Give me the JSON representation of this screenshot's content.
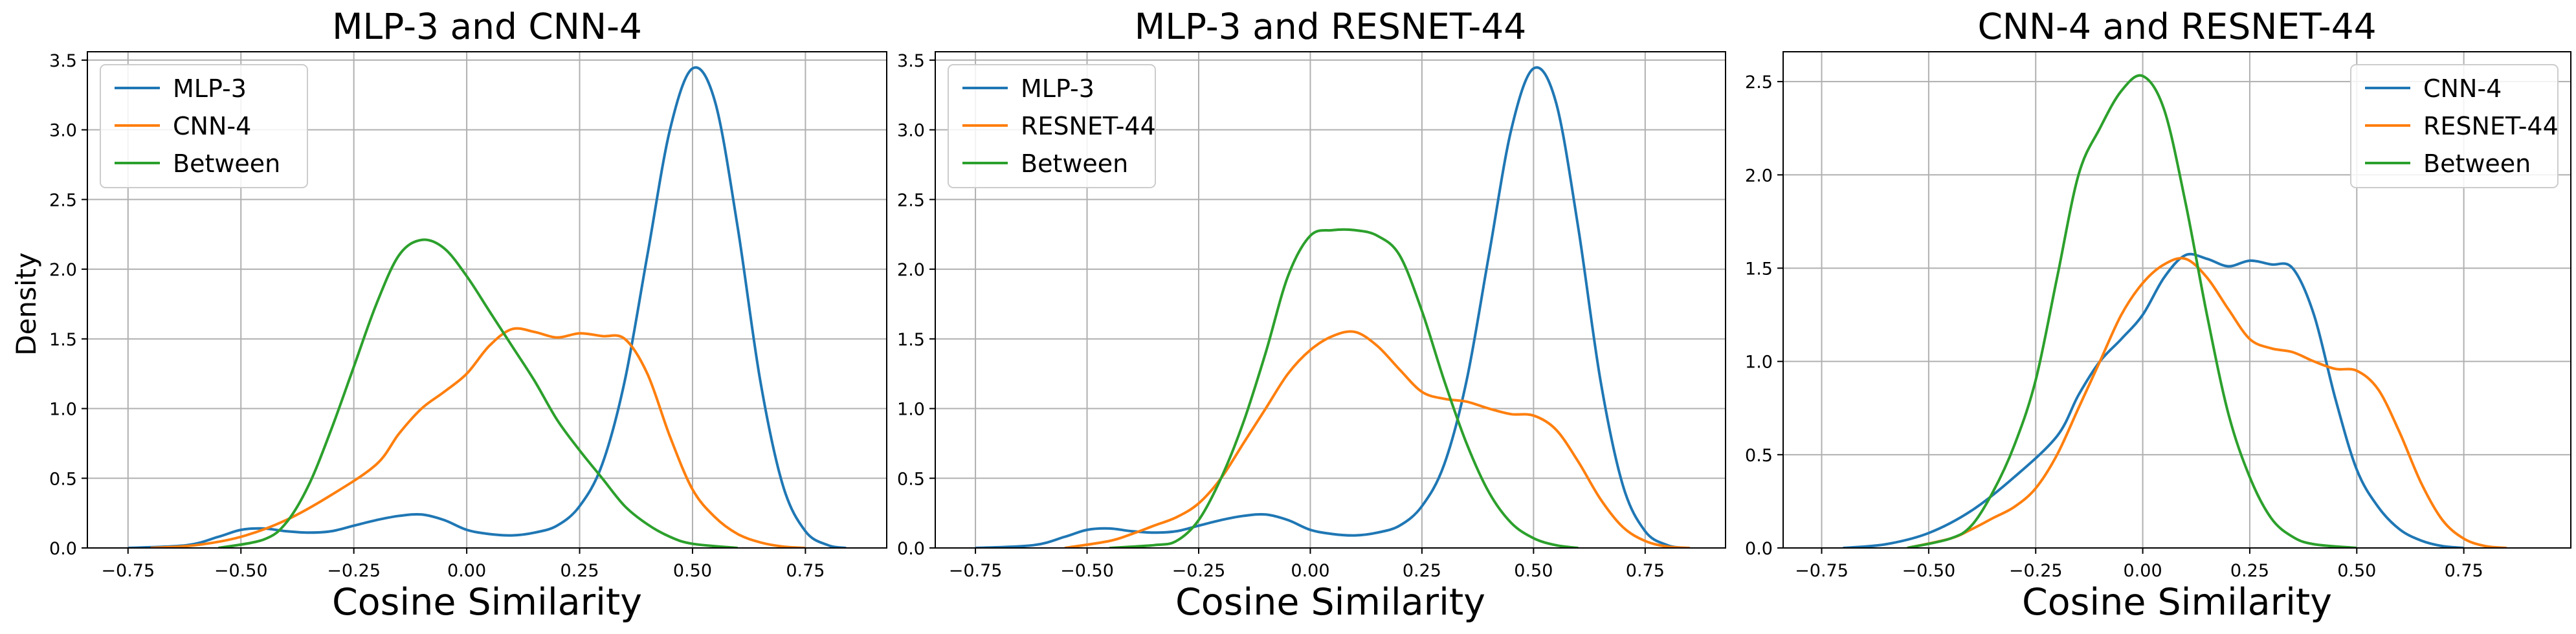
{
  "figure": {
    "ylabel": "Density",
    "xlabel": "Cosine Similarity"
  },
  "chart_data": [
    {
      "type": "line",
      "title": "MLP-3 and CNN-4",
      "xlabel": "Cosine Similarity",
      "ylabel": "Density",
      "xlim": [
        -0.84,
        0.93
      ],
      "ylim": [
        0,
        3.56
      ],
      "xticks": [
        -0.75,
        -0.5,
        -0.25,
        0.0,
        0.25,
        0.5,
        0.75
      ],
      "xtick_labels": [
        "−0.75",
        "−0.50",
        "−0.25",
        "0.00",
        "0.25",
        "0.50",
        "0.75"
      ],
      "yticks": [
        0,
        0.5,
        1.0,
        1.5,
        2.0,
        2.5,
        3.0,
        3.5
      ],
      "ytick_labels": [
        "0.0",
        "0.5",
        "1.0",
        "1.5",
        "2.0",
        "2.5",
        "3.0",
        "3.5"
      ],
      "grid": true,
      "legend_position": "upper-left",
      "series": [
        {
          "name": "MLP-3",
          "color": "#1f77b4",
          "points": [
            [
              -0.75,
              0
            ],
            [
              -0.62,
              0.02
            ],
            [
              -0.55,
              0.08
            ],
            [
              -0.5,
              0.13
            ],
            [
              -0.45,
              0.14
            ],
            [
              -0.4,
              0.12
            ],
            [
              -0.35,
              0.11
            ],
            [
              -0.3,
              0.12
            ],
            [
              -0.25,
              0.16
            ],
            [
              -0.2,
              0.2
            ],
            [
              -0.15,
              0.23
            ],
            [
              -0.1,
              0.24
            ],
            [
              -0.05,
              0.2
            ],
            [
              0.0,
              0.13
            ],
            [
              0.05,
              0.1
            ],
            [
              0.1,
              0.09
            ],
            [
              0.15,
              0.11
            ],
            [
              0.2,
              0.16
            ],
            [
              0.25,
              0.3
            ],
            [
              0.3,
              0.6
            ],
            [
              0.35,
              1.2
            ],
            [
              0.4,
              2.1
            ],
            [
              0.45,
              3.0
            ],
            [
              0.5,
              3.44
            ],
            [
              0.55,
              3.2
            ],
            [
              0.6,
              2.3
            ],
            [
              0.65,
              1.2
            ],
            [
              0.7,
              0.45
            ],
            [
              0.75,
              0.12
            ],
            [
              0.8,
              0.02
            ],
            [
              0.84,
              0
            ]
          ]
        },
        {
          "name": "CNN-4",
          "color": "#ff7f0e",
          "points": [
            [
              -0.7,
              0
            ],
            [
              -0.6,
              0.02
            ],
            [
              -0.5,
              0.08
            ],
            [
              -0.4,
              0.2
            ],
            [
              -0.3,
              0.38
            ],
            [
              -0.2,
              0.6
            ],
            [
              -0.15,
              0.82
            ],
            [
              -0.1,
              1.0
            ],
            [
              -0.05,
              1.12
            ],
            [
              0.0,
              1.25
            ],
            [
              0.05,
              1.45
            ],
            [
              0.1,
              1.57
            ],
            [
              0.15,
              1.55
            ],
            [
              0.2,
              1.51
            ],
            [
              0.25,
              1.54
            ],
            [
              0.3,
              1.52
            ],
            [
              0.35,
              1.5
            ],
            [
              0.4,
              1.25
            ],
            [
              0.45,
              0.8
            ],
            [
              0.5,
              0.42
            ],
            [
              0.55,
              0.22
            ],
            [
              0.6,
              0.1
            ],
            [
              0.65,
              0.04
            ],
            [
              0.7,
              0.01
            ],
            [
              0.75,
              0
            ]
          ]
        },
        {
          "name": "Between",
          "color": "#2ca02c",
          "points": [
            [
              -0.55,
              0
            ],
            [
              -0.45,
              0.06
            ],
            [
              -0.4,
              0.18
            ],
            [
              -0.35,
              0.45
            ],
            [
              -0.3,
              0.85
            ],
            [
              -0.25,
              1.3
            ],
            [
              -0.2,
              1.75
            ],
            [
              -0.15,
              2.1
            ],
            [
              -0.1,
              2.21
            ],
            [
              -0.05,
              2.15
            ],
            [
              0.0,
              1.95
            ],
            [
              0.05,
              1.7
            ],
            [
              0.1,
              1.45
            ],
            [
              0.15,
              1.2
            ],
            [
              0.2,
              0.92
            ],
            [
              0.25,
              0.7
            ],
            [
              0.3,
              0.5
            ],
            [
              0.35,
              0.3
            ],
            [
              0.4,
              0.17
            ],
            [
              0.45,
              0.08
            ],
            [
              0.5,
              0.03
            ],
            [
              0.6,
              0
            ]
          ]
        }
      ]
    },
    {
      "type": "line",
      "title": "MLP-3 and RESNET-44",
      "xlabel": "Cosine Similarity",
      "ylabel": "",
      "xlim": [
        -0.84,
        0.93
      ],
      "ylim": [
        0,
        3.56
      ],
      "xticks": [
        -0.75,
        -0.5,
        -0.25,
        0.0,
        0.25,
        0.5,
        0.75
      ],
      "xtick_labels": [
        "−0.75",
        "−0.50",
        "−0.25",
        "0.00",
        "0.25",
        "0.50",
        "0.75"
      ],
      "yticks": [
        0,
        0.5,
        1.0,
        1.5,
        2.0,
        2.5,
        3.0,
        3.5
      ],
      "ytick_labels": [
        "0.0",
        "0.5",
        "1.0",
        "1.5",
        "2.0",
        "2.5",
        "3.0",
        "3.5"
      ],
      "grid": true,
      "legend_position": "upper-left",
      "series": [
        {
          "name": "MLP-3",
          "color": "#1f77b4",
          "points": [
            [
              -0.75,
              0
            ],
            [
              -0.62,
              0.02
            ],
            [
              -0.55,
              0.08
            ],
            [
              -0.5,
              0.13
            ],
            [
              -0.45,
              0.14
            ],
            [
              -0.4,
              0.12
            ],
            [
              -0.35,
              0.11
            ],
            [
              -0.3,
              0.12
            ],
            [
              -0.25,
              0.16
            ],
            [
              -0.2,
              0.2
            ],
            [
              -0.15,
              0.23
            ],
            [
              -0.1,
              0.24
            ],
            [
              -0.05,
              0.2
            ],
            [
              0.0,
              0.13
            ],
            [
              0.05,
              0.1
            ],
            [
              0.1,
              0.09
            ],
            [
              0.15,
              0.11
            ],
            [
              0.2,
              0.16
            ],
            [
              0.25,
              0.3
            ],
            [
              0.3,
              0.6
            ],
            [
              0.35,
              1.2
            ],
            [
              0.4,
              2.1
            ],
            [
              0.45,
              3.0
            ],
            [
              0.5,
              3.44
            ],
            [
              0.55,
              3.2
            ],
            [
              0.6,
              2.3
            ],
            [
              0.65,
              1.2
            ],
            [
              0.7,
              0.45
            ],
            [
              0.75,
              0.12
            ],
            [
              0.8,
              0.02
            ],
            [
              0.84,
              0
            ]
          ]
        },
        {
          "name": "RESNET-44",
          "color": "#ff7f0e",
          "points": [
            [
              -0.55,
              0
            ],
            [
              -0.45,
              0.05
            ],
            [
              -0.4,
              0.1
            ],
            [
              -0.35,
              0.16
            ],
            [
              -0.3,
              0.22
            ],
            [
              -0.25,
              0.32
            ],
            [
              -0.2,
              0.5
            ],
            [
              -0.15,
              0.75
            ],
            [
              -0.1,
              1.0
            ],
            [
              -0.05,
              1.25
            ],
            [
              0.0,
              1.42
            ],
            [
              0.05,
              1.52
            ],
            [
              0.1,
              1.55
            ],
            [
              0.15,
              1.45
            ],
            [
              0.2,
              1.28
            ],
            [
              0.25,
              1.12
            ],
            [
              0.3,
              1.07
            ],
            [
              0.35,
              1.05
            ],
            [
              0.4,
              1.0
            ],
            [
              0.45,
              0.96
            ],
            [
              0.5,
              0.95
            ],
            [
              0.55,
              0.85
            ],
            [
              0.6,
              0.62
            ],
            [
              0.65,
              0.35
            ],
            [
              0.7,
              0.15
            ],
            [
              0.75,
              0.05
            ],
            [
              0.8,
              0.01
            ],
            [
              0.85,
              0
            ]
          ]
        },
        {
          "name": "Between",
          "color": "#2ca02c",
          "points": [
            [
              -0.45,
              0
            ],
            [
              -0.35,
              0.02
            ],
            [
              -0.3,
              0.05
            ],
            [
              -0.25,
              0.2
            ],
            [
              -0.2,
              0.5
            ],
            [
              -0.15,
              0.9
            ],
            [
              -0.1,
              1.4
            ],
            [
              -0.05,
              1.95
            ],
            [
              0.0,
              2.24
            ],
            [
              0.05,
              2.28
            ],
            [
              0.1,
              2.28
            ],
            [
              0.15,
              2.24
            ],
            [
              0.2,
              2.1
            ],
            [
              0.25,
              1.7
            ],
            [
              0.3,
              1.2
            ],
            [
              0.35,
              0.75
            ],
            [
              0.4,
              0.4
            ],
            [
              0.45,
              0.18
            ],
            [
              0.5,
              0.07
            ],
            [
              0.55,
              0.02
            ],
            [
              0.6,
              0
            ]
          ]
        }
      ]
    },
    {
      "type": "line",
      "title": "CNN-4 and RESNET-44",
      "xlabel": "Cosine Similarity",
      "ylabel": "",
      "xlim": [
        -0.84,
        1.0
      ],
      "ylim": [
        0,
        2.66
      ],
      "xticks": [
        -0.75,
        -0.5,
        -0.25,
        0.0,
        0.25,
        0.5,
        0.75
      ],
      "xtick_labels": [
        "−0.75",
        "−0.50",
        "−0.25",
        "0.00",
        "0.25",
        "0.50",
        "0.75"
      ],
      "yticks": [
        0,
        0.5,
        1.0,
        1.5,
        2.0,
        2.5
      ],
      "ytick_labels": [
        "0.0",
        "0.5",
        "1.0",
        "1.5",
        "2.0",
        "2.5"
      ],
      "grid": true,
      "legend_position": "upper-right",
      "series": [
        {
          "name": "CNN-4",
          "color": "#1f77b4",
          "points": [
            [
              -0.7,
              0
            ],
            [
              -0.6,
              0.02
            ],
            [
              -0.5,
              0.08
            ],
            [
              -0.4,
              0.2
            ],
            [
              -0.3,
              0.38
            ],
            [
              -0.2,
              0.6
            ],
            [
              -0.15,
              0.82
            ],
            [
              -0.1,
              1.0
            ],
            [
              -0.05,
              1.12
            ],
            [
              0.0,
              1.25
            ],
            [
              0.05,
              1.45
            ],
            [
              0.1,
              1.57
            ],
            [
              0.15,
              1.55
            ],
            [
              0.2,
              1.51
            ],
            [
              0.25,
              1.54
            ],
            [
              0.3,
              1.52
            ],
            [
              0.35,
              1.5
            ],
            [
              0.4,
              1.25
            ],
            [
              0.45,
              0.8
            ],
            [
              0.5,
              0.42
            ],
            [
              0.55,
              0.22
            ],
            [
              0.6,
              0.1
            ],
            [
              0.65,
              0.04
            ],
            [
              0.7,
              0.01
            ],
            [
              0.75,
              0
            ]
          ]
        },
        {
          "name": "RESNET-44",
          "color": "#ff7f0e",
          "points": [
            [
              -0.55,
              0
            ],
            [
              -0.45,
              0.05
            ],
            [
              -0.4,
              0.1
            ],
            [
              -0.35,
              0.16
            ],
            [
              -0.3,
              0.22
            ],
            [
              -0.25,
              0.32
            ],
            [
              -0.2,
              0.5
            ],
            [
              -0.15,
              0.75
            ],
            [
              -0.1,
              1.0
            ],
            [
              -0.05,
              1.25
            ],
            [
              0.0,
              1.42
            ],
            [
              0.05,
              1.52
            ],
            [
              0.1,
              1.55
            ],
            [
              0.15,
              1.45
            ],
            [
              0.2,
              1.28
            ],
            [
              0.25,
              1.12
            ],
            [
              0.3,
              1.07
            ],
            [
              0.35,
              1.05
            ],
            [
              0.4,
              1.0
            ],
            [
              0.45,
              0.96
            ],
            [
              0.5,
              0.95
            ],
            [
              0.55,
              0.85
            ],
            [
              0.6,
              0.62
            ],
            [
              0.65,
              0.35
            ],
            [
              0.7,
              0.15
            ],
            [
              0.75,
              0.05
            ],
            [
              0.8,
              0.01
            ],
            [
              0.85,
              0
            ]
          ]
        },
        {
          "name": "Between",
          "color": "#2ca02c",
          "points": [
            [
              -0.55,
              0
            ],
            [
              -0.45,
              0.05
            ],
            [
              -0.4,
              0.12
            ],
            [
              -0.35,
              0.3
            ],
            [
              -0.3,
              0.55
            ],
            [
              -0.25,
              0.9
            ],
            [
              -0.2,
              1.45
            ],
            [
              -0.15,
              2.0
            ],
            [
              -0.1,
              2.25
            ],
            [
              -0.05,
              2.45
            ],
            [
              0.0,
              2.53
            ],
            [
              0.05,
              2.35
            ],
            [
              0.1,
              1.85
            ],
            [
              0.15,
              1.25
            ],
            [
              0.2,
              0.72
            ],
            [
              0.25,
              0.38
            ],
            [
              0.3,
              0.16
            ],
            [
              0.35,
              0.06
            ],
            [
              0.4,
              0.02
            ],
            [
              0.5,
              0
            ]
          ]
        }
      ]
    }
  ]
}
